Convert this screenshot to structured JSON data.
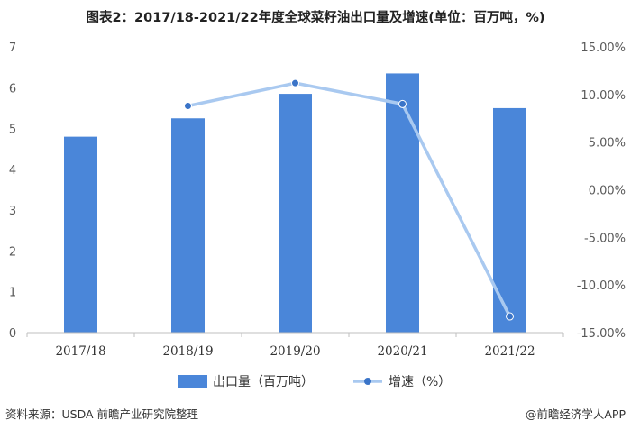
{
  "title": "图表2：2017/18-2021/22年度全球菜籽油出口量及增速(单位：百万吨，%)",
  "source": "资料来源：USDA 前瞻产业研究院整理",
  "brand": "@前瞻经济学人APP",
  "colors": {
    "bar": "#4a86d9",
    "line": "#a9c9f0",
    "marker": "#3a74c8",
    "axis": "#bfbfbf"
  },
  "chart_data": {
    "type": "bar",
    "categories": [
      "2017/18",
      "2018/19",
      "2019/20",
      "2020/21",
      "2021/22"
    ],
    "series": [
      {
        "name": "出口量（百万吨）",
        "type": "bar",
        "axis": "left",
        "values": [
          4.8,
          5.25,
          5.85,
          6.35,
          5.5
        ]
      },
      {
        "name": "增速（%）",
        "type": "line",
        "axis": "right",
        "values": [
          null,
          8.8,
          11.2,
          9.0,
          -13.3
        ]
      }
    ],
    "y_left": {
      "min": 0,
      "max": 7,
      "ticks": [
        "0",
        "1",
        "2",
        "3",
        "4",
        "5",
        "6",
        "7"
      ]
    },
    "y_right": {
      "min": -15,
      "max": 15,
      "ticks": [
        "-15.00%",
        "-10.00%",
        "-5.00%",
        "0.00%",
        "5.00%",
        "10.00%",
        "15.00%"
      ]
    },
    "grid": false,
    "legend_position": "bottom"
  }
}
